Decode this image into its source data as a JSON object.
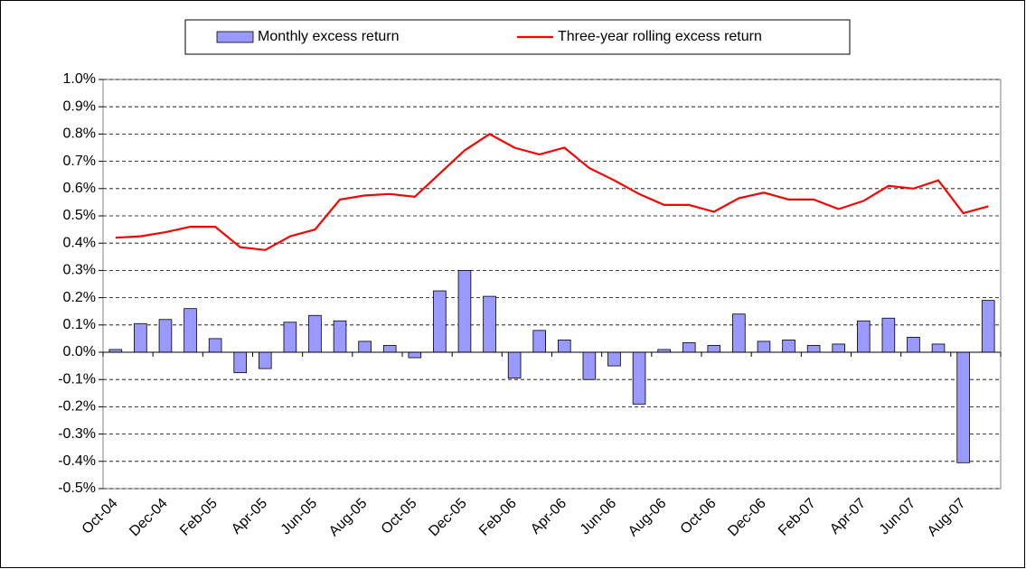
{
  "chart_data": {
    "type": "bar_line",
    "categories": [
      "Oct-04",
      null,
      "Dec-04",
      null,
      "Feb-05",
      null,
      "Apr-05",
      null,
      "Jun-05",
      null,
      "Aug-05",
      null,
      "Oct-05",
      null,
      "Dec-05",
      null,
      "Feb-06",
      null,
      "Apr-06",
      null,
      "Jun-06",
      null,
      "Aug-06",
      null,
      "Oct-06",
      null,
      "Dec-06",
      null,
      "Feb-07",
      null,
      "Apr-07",
      null,
      "Jun-07",
      null,
      "Aug-07",
      null
    ],
    "series": [
      {
        "name": "Monthly excess return",
        "type": "bar",
        "color": "#9999ff",
        "values": [
          0.01,
          0.105,
          0.12,
          0.16,
          0.05,
          -0.075,
          -0.06,
          0.11,
          0.135,
          0.115,
          0.04,
          0.025,
          -0.02,
          0.225,
          0.3,
          0.205,
          -0.095,
          0.08,
          0.045,
          -0.1,
          -0.05,
          -0.19,
          0.01,
          0.035,
          0.025,
          0.14,
          0.04,
          0.045,
          0.025,
          0.03,
          0.115,
          0.125,
          0.055,
          0.03,
          -0.405,
          0.19
        ]
      },
      {
        "name": "Three-year rolling excess return",
        "type": "line",
        "color": "#ff0000",
        "values": [
          0.42,
          0.425,
          0.44,
          0.46,
          0.46,
          0.385,
          0.375,
          0.425,
          0.45,
          0.56,
          0.575,
          0.58,
          0.57,
          0.655,
          0.74,
          0.8,
          0.75,
          0.725,
          0.75,
          0.675,
          0.63,
          0.58,
          0.54,
          0.54,
          0.515,
          0.565,
          0.585,
          0.56,
          0.56,
          0.525,
          0.555,
          0.61,
          0.6,
          0.63,
          0.51,
          0.535
        ]
      }
    ],
    "ylim": [
      -0.5,
      1.0
    ],
    "yticks": [
      {
        "value": -0.5,
        "label": "-0.5%"
      },
      {
        "value": -0.4,
        "label": "-0.4%"
      },
      {
        "value": -0.3,
        "label": "-0.3%"
      },
      {
        "value": -0.2,
        "label": "-0.2%"
      },
      {
        "value": -0.1,
        "label": "-0.1%"
      },
      {
        "value": 0.0,
        "label": "0.0%"
      },
      {
        "value": 0.1,
        "label": "0.1%"
      },
      {
        "value": 0.2,
        "label": "0.2%"
      },
      {
        "value": 0.3,
        "label": "0.3%"
      },
      {
        "value": 0.4,
        "label": "0.4%"
      },
      {
        "value": 0.5,
        "label": "0.5%"
      },
      {
        "value": 0.6,
        "label": "0.6%"
      },
      {
        "value": 0.7,
        "label": "0.7%"
      },
      {
        "value": 0.8,
        "label": "0.8%"
      },
      {
        "value": 0.9,
        "label": "0.9%"
      },
      {
        "value": 1.0,
        "label": "1.0%"
      }
    ],
    "grid": true,
    "legend": "top"
  }
}
